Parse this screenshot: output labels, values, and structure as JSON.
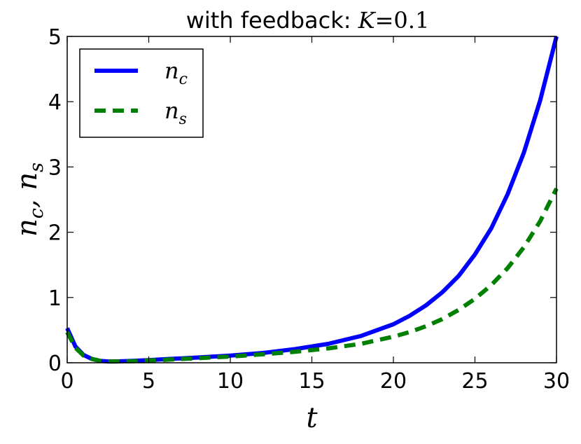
{
  "chart_data": {
    "type": "line",
    "title": "with feedback: ",
    "title_math": "K",
    "title_math_eq": "=",
    "title_math_value": "0.1",
    "xlabel": "t",
    "ylabel_base_1": "n",
    "ylabel_sub_1": "c",
    "ylabel_sep": ", ",
    "ylabel_base_2": "n",
    "ylabel_sub_2": "s",
    "xlim": [
      0,
      30
    ],
    "ylim": [
      0,
      5
    ],
    "xticks": [
      "0",
      "5",
      "10",
      "15",
      "20",
      "25",
      "30"
    ],
    "yticks": [
      "0",
      "1",
      "2",
      "3",
      "4",
      "5"
    ],
    "grid": false,
    "legend_position": "top-left",
    "series": [
      {
        "name_base": "n",
        "name_sub": "c",
        "color": "#0000ff",
        "style": "solid",
        "x": [
          0,
          0.5,
          1,
          1.5,
          2,
          2.5,
          3,
          4,
          5,
          6,
          8,
          10,
          12,
          14,
          16,
          18,
          20,
          21,
          22,
          23,
          24,
          25,
          26,
          27,
          28,
          29,
          30
        ],
        "y": [
          0.53,
          0.25,
          0.12,
          0.06,
          0.03,
          0.02,
          0.02,
          0.03,
          0.04,
          0.055,
          0.08,
          0.11,
          0.15,
          0.21,
          0.29,
          0.41,
          0.59,
          0.72,
          0.88,
          1.08,
          1.33,
          1.66,
          2.06,
          2.58,
          3.22,
          4.02,
          5.0
        ]
      },
      {
        "name_base": "n",
        "name_sub": "s",
        "color": "#008000",
        "style": "dashed",
        "x": [
          0,
          0.5,
          1,
          1.5,
          2,
          2.5,
          3,
          4,
          5,
          6,
          8,
          10,
          12,
          14,
          16,
          18,
          20,
          21,
          22,
          23,
          24,
          25,
          26,
          27,
          28,
          29,
          30
        ],
        "y": [
          0.47,
          0.23,
          0.11,
          0.06,
          0.03,
          0.02,
          0.02,
          0.025,
          0.035,
          0.045,
          0.07,
          0.095,
          0.13,
          0.17,
          0.22,
          0.29,
          0.4,
          0.47,
          0.56,
          0.67,
          0.81,
          0.98,
          1.19,
          1.45,
          1.77,
          2.17,
          2.67
        ]
      }
    ]
  }
}
